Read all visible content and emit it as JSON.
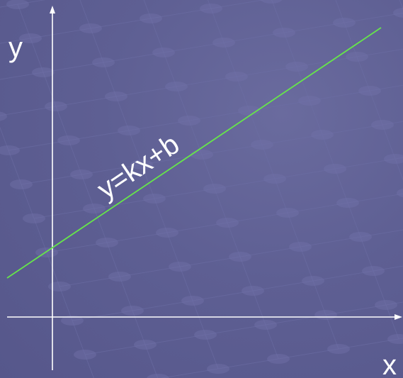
{
  "diagram": {
    "x_label": "x",
    "y_label": "y",
    "line_label": "y=kx+b",
    "colors": {
      "background": "#5b5c90",
      "axes": "#ffffff",
      "line": "#66e64a",
      "text": "#ffffff"
    }
  }
}
